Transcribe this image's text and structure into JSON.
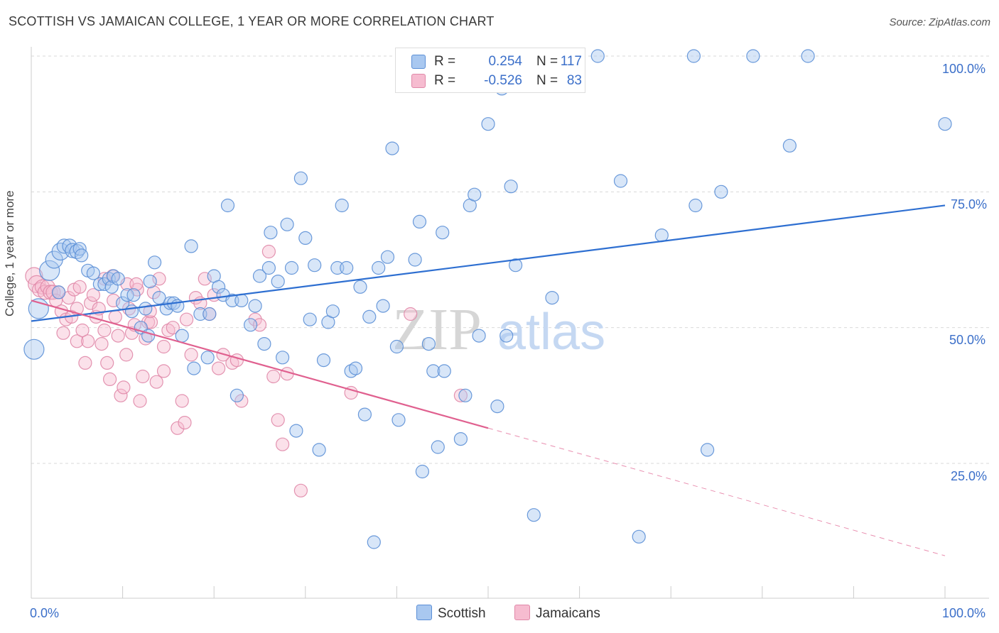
{
  "header": {
    "title": "SCOTTISH VS JAMAICAN COLLEGE, 1 YEAR OR MORE CORRELATION CHART",
    "source": "Source: ZipAtlas.com"
  },
  "legend": {
    "rows": [
      {
        "r_label": "R =",
        "r_value": "0.254",
        "n_label": "N =",
        "n_value": "117"
      },
      {
        "r_label": "R =",
        "r_value": "-0.526",
        "n_label": "N =",
        "n_value": "83"
      }
    ],
    "bottom": [
      "Scottish",
      "Jamaicans"
    ]
  },
  "watermark": {
    "zip": "ZIP",
    "atlas": "atlas"
  },
  "colors": {
    "scottish_fill": "#a9c8f0",
    "scottish_stroke": "#5b8fd6",
    "scottish_line": "#2e6fd1",
    "jamaican_fill": "#f6bcd0",
    "jamaican_stroke": "#e088a8",
    "jamaican_line": "#e0608f",
    "grid": "#d9d9d9",
    "axis_label": "#3b6fc9"
  },
  "chart_data": {
    "type": "scatter",
    "ylabel": "College, 1 year or more",
    "xlim": [
      0,
      100
    ],
    "ylim": [
      0,
      103
    ],
    "x_tick_labels": [
      "0.0%",
      "100.0%"
    ],
    "y_ticks": [
      {
        "value": 25,
        "label": "25.0%"
      },
      {
        "value": 50,
        "label": "50.0%"
      },
      {
        "value": 75,
        "label": "75.0%"
      },
      {
        "value": 100,
        "label": "100.0%"
      }
    ],
    "grid": true,
    "legend_placement": "top-center",
    "series": [
      {
        "name": "Scottish",
        "trend": {
          "x0": 0,
          "y0": 51.2,
          "x1": 100,
          "y1": 72.5
        },
        "points": [
          [
            0.3,
            46,
            14
          ],
          [
            0.8,
            53.5,
            14
          ],
          [
            2,
            60.5,
            14
          ],
          [
            2.5,
            62.5,
            12
          ],
          [
            3.2,
            64,
            12
          ],
          [
            3.6,
            65,
            10
          ],
          [
            4.2,
            65,
            10
          ],
          [
            4.5,
            64.2,
            10
          ],
          [
            5,
            64,
            10
          ],
          [
            5.3,
            64.5,
            9
          ],
          [
            5.5,
            63.3,
            9
          ],
          [
            3,
            56.5,
            9
          ],
          [
            6.2,
            60.5,
            9
          ],
          [
            6.8,
            60,
            9
          ],
          [
            7.5,
            58,
            9
          ],
          [
            8,
            58,
            9
          ],
          [
            8.5,
            59,
            9
          ],
          [
            8.8,
            57.5,
            9
          ],
          [
            9,
            59.5,
            9
          ],
          [
            9.5,
            59,
            9
          ],
          [
            10,
            54.5,
            9
          ],
          [
            10.5,
            56,
            9
          ],
          [
            11,
            53,
            9
          ],
          [
            11.2,
            56,
            9
          ],
          [
            12,
            50,
            9
          ],
          [
            12.5,
            53.5,
            9
          ],
          [
            12.8,
            48.5,
            9
          ],
          [
            13,
            58.5,
            9
          ],
          [
            13.5,
            62,
            9
          ],
          [
            14,
            55.5,
            9
          ],
          [
            14.8,
            53.5,
            9
          ],
          [
            15.2,
            54.5,
            9
          ],
          [
            15.6,
            54.5,
            9
          ],
          [
            16,
            54,
            9
          ],
          [
            16.5,
            48.5,
            9
          ],
          [
            17.5,
            65,
            9
          ],
          [
            17.8,
            42.5,
            9
          ],
          [
            18.5,
            52.5,
            9
          ],
          [
            19.3,
            44.5,
            9
          ],
          [
            19.5,
            52.5,
            9
          ],
          [
            20,
            59.5,
            9
          ],
          [
            20.5,
            57.5,
            9
          ],
          [
            21,
            56,
            9
          ],
          [
            21.5,
            72.5,
            9
          ],
          [
            22,
            55,
            9
          ],
          [
            22.5,
            37.5,
            9
          ],
          [
            23,
            55,
            9
          ],
          [
            24,
            50.5,
            9
          ],
          [
            24.5,
            54,
            9
          ],
          [
            25,
            59.5,
            9
          ],
          [
            25.5,
            47,
            9
          ],
          [
            26,
            61,
            9
          ],
          [
            26.2,
            67.5,
            9
          ],
          [
            27,
            58.5,
            9
          ],
          [
            27.5,
            44.5,
            9
          ],
          [
            28,
            69,
            9
          ],
          [
            28.5,
            61,
            9
          ],
          [
            29,
            31,
            9
          ],
          [
            29.5,
            77.5,
            9
          ],
          [
            30,
            66.5,
            9
          ],
          [
            30.5,
            51.5,
            9
          ],
          [
            31,
            61.5,
            9
          ],
          [
            31.5,
            27.5,
            9
          ],
          [
            32,
            44,
            9
          ],
          [
            32.5,
            51,
            9
          ],
          [
            33,
            53,
            9
          ],
          [
            33.5,
            61,
            9
          ],
          [
            34,
            72.5,
            9
          ],
          [
            34.5,
            61,
            9
          ],
          [
            35,
            42,
            9
          ],
          [
            35.5,
            42.5,
            9
          ],
          [
            36,
            57.5,
            9
          ],
          [
            36.5,
            34,
            9
          ],
          [
            37,
            52,
            9
          ],
          [
            37.5,
            10.5,
            9
          ],
          [
            38,
            61,
            9
          ],
          [
            38.5,
            54,
            9
          ],
          [
            39,
            63,
            9
          ],
          [
            39.5,
            83,
            9
          ],
          [
            40,
            46.5,
            9
          ],
          [
            40.2,
            33,
            9
          ],
          [
            41,
            94.5,
            9
          ],
          [
            42,
            62.5,
            9
          ],
          [
            42.5,
            69.5,
            9
          ],
          [
            42.8,
            23.5,
            9
          ],
          [
            43.5,
            47,
            9
          ],
          [
            44,
            42,
            9
          ],
          [
            44.5,
            28,
            9
          ],
          [
            45,
            67.5,
            9
          ],
          [
            45.2,
            42,
            9
          ],
          [
            47,
            29.5,
            9
          ],
          [
            47.5,
            37.5,
            9
          ],
          [
            48,
            72.5,
            9
          ],
          [
            48.5,
            74.5,
            9
          ],
          [
            49,
            48.5,
            9
          ],
          [
            50,
            87.5,
            9
          ],
          [
            51,
            35.5,
            9
          ],
          [
            52,
            48.5,
            9
          ],
          [
            52.5,
            76,
            9
          ],
          [
            53,
            61.5,
            9
          ],
          [
            55,
            15.5,
            9
          ],
          [
            57,
            55.5,
            9
          ],
          [
            59,
            100,
            9
          ],
          [
            59.2,
            100,
            9
          ],
          [
            62,
            100,
            9
          ],
          [
            64.5,
            77,
            9
          ],
          [
            66.5,
            11.5,
            9
          ],
          [
            69,
            67,
            9
          ],
          [
            72.5,
            100,
            9
          ],
          [
            72.7,
            72.5,
            9
          ],
          [
            74,
            27.5,
            9
          ],
          [
            75.5,
            75,
            9
          ],
          [
            79,
            100,
            9
          ],
          [
            83,
            83.5,
            9
          ],
          [
            85,
            100,
            9
          ],
          [
            100,
            87.5,
            9
          ],
          [
            51.5,
            94,
            9
          ]
        ]
      },
      {
        "name": "Jamaicans",
        "trend": {
          "x0": 0,
          "y0": 55,
          "x1": 50,
          "y1": 31.5,
          "dash_to_x": 100,
          "dash_to_y": 8
        },
        "points": [
          [
            0.3,
            59.5,
            12
          ],
          [
            0.6,
            58,
            12
          ],
          [
            0.9,
            57,
            10
          ],
          [
            1.2,
            57.5,
            10
          ],
          [
            1.5,
            56.5,
            10
          ],
          [
            1.8,
            57.5,
            10
          ],
          [
            2.1,
            56.5,
            10
          ],
          [
            2.4,
            56.5,
            10
          ],
          [
            2.7,
            55,
            9
          ],
          [
            3,
            56.5,
            9
          ],
          [
            3.3,
            53,
            9
          ],
          [
            3.5,
            49,
            9
          ],
          [
            3.8,
            51.5,
            9
          ],
          [
            4.1,
            55.5,
            9
          ],
          [
            4.4,
            52,
            9
          ],
          [
            4.7,
            57,
            9
          ],
          [
            5,
            47.5,
            9
          ],
          [
            5.3,
            57.5,
            9
          ],
          [
            5.6,
            49.5,
            9
          ],
          [
            5.9,
            43.5,
            9
          ],
          [
            6.2,
            47.5,
            9
          ],
          [
            6.5,
            54.5,
            9
          ],
          [
            6.8,
            56,
            9
          ],
          [
            7.1,
            52,
            9
          ],
          [
            7.4,
            53.5,
            9
          ],
          [
            7.7,
            47,
            9
          ],
          [
            8,
            49.5,
            9
          ],
          [
            8.3,
            43.5,
            9
          ],
          [
            8.6,
            40.5,
            9
          ],
          [
            8.9,
            59.5,
            9
          ],
          [
            9.2,
            52,
            9
          ],
          [
            9.5,
            48.5,
            9
          ],
          [
            9.8,
            37.5,
            9
          ],
          [
            10.1,
            39,
            9
          ],
          [
            10.4,
            45,
            9
          ],
          [
            10.7,
            53.5,
            9
          ],
          [
            11,
            49,
            9
          ],
          [
            11.3,
            50.5,
            9
          ],
          [
            11.6,
            57,
            9
          ],
          [
            11.9,
            36.5,
            9
          ],
          [
            12.2,
            41,
            9
          ],
          [
            12.5,
            48,
            9
          ],
          [
            12.8,
            51,
            9
          ],
          [
            13.1,
            51,
            9
          ],
          [
            13.4,
            56.5,
            9
          ],
          [
            13.7,
            40,
            9
          ],
          [
            14,
            59,
            9
          ],
          [
            14.5,
            46.5,
            9
          ],
          [
            15,
            49.5,
            9
          ],
          [
            15.5,
            50,
            9
          ],
          [
            16,
            31.5,
            9
          ],
          [
            16.5,
            36.5,
            9
          ],
          [
            16.8,
            32.5,
            9
          ],
          [
            17,
            51.5,
            9
          ],
          [
            17.5,
            45,
            9
          ],
          [
            18,
            55.5,
            9
          ],
          [
            18.5,
            54.5,
            9
          ],
          [
            19,
            59,
            9
          ],
          [
            19.5,
            52.5,
            9
          ],
          [
            20,
            56,
            9
          ],
          [
            20.5,
            42.5,
            9
          ],
          [
            21,
            45,
            9
          ],
          [
            22,
            43.5,
            9
          ],
          [
            22.5,
            44,
            9
          ],
          [
            23,
            36.5,
            9
          ],
          [
            24.5,
            51.5,
            9
          ],
          [
            25,
            50.5,
            9
          ],
          [
            26,
            64,
            9
          ],
          [
            26.5,
            41,
            9
          ],
          [
            27,
            33,
            9
          ],
          [
            27.5,
            28.5,
            9
          ],
          [
            28,
            41.5,
            9
          ],
          [
            29.5,
            20,
            9
          ],
          [
            8,
            59,
            9
          ],
          [
            9,
            55,
            9
          ],
          [
            10.5,
            58,
            9
          ],
          [
            11.5,
            58,
            9
          ],
          [
            13,
            53,
            9
          ],
          [
            14.5,
            42,
            9
          ],
          [
            35,
            38,
            9
          ],
          [
            41.5,
            52.5,
            9
          ],
          [
            47,
            37.5,
            9
          ],
          [
            5,
            53.5,
            9
          ]
        ]
      }
    ]
  }
}
